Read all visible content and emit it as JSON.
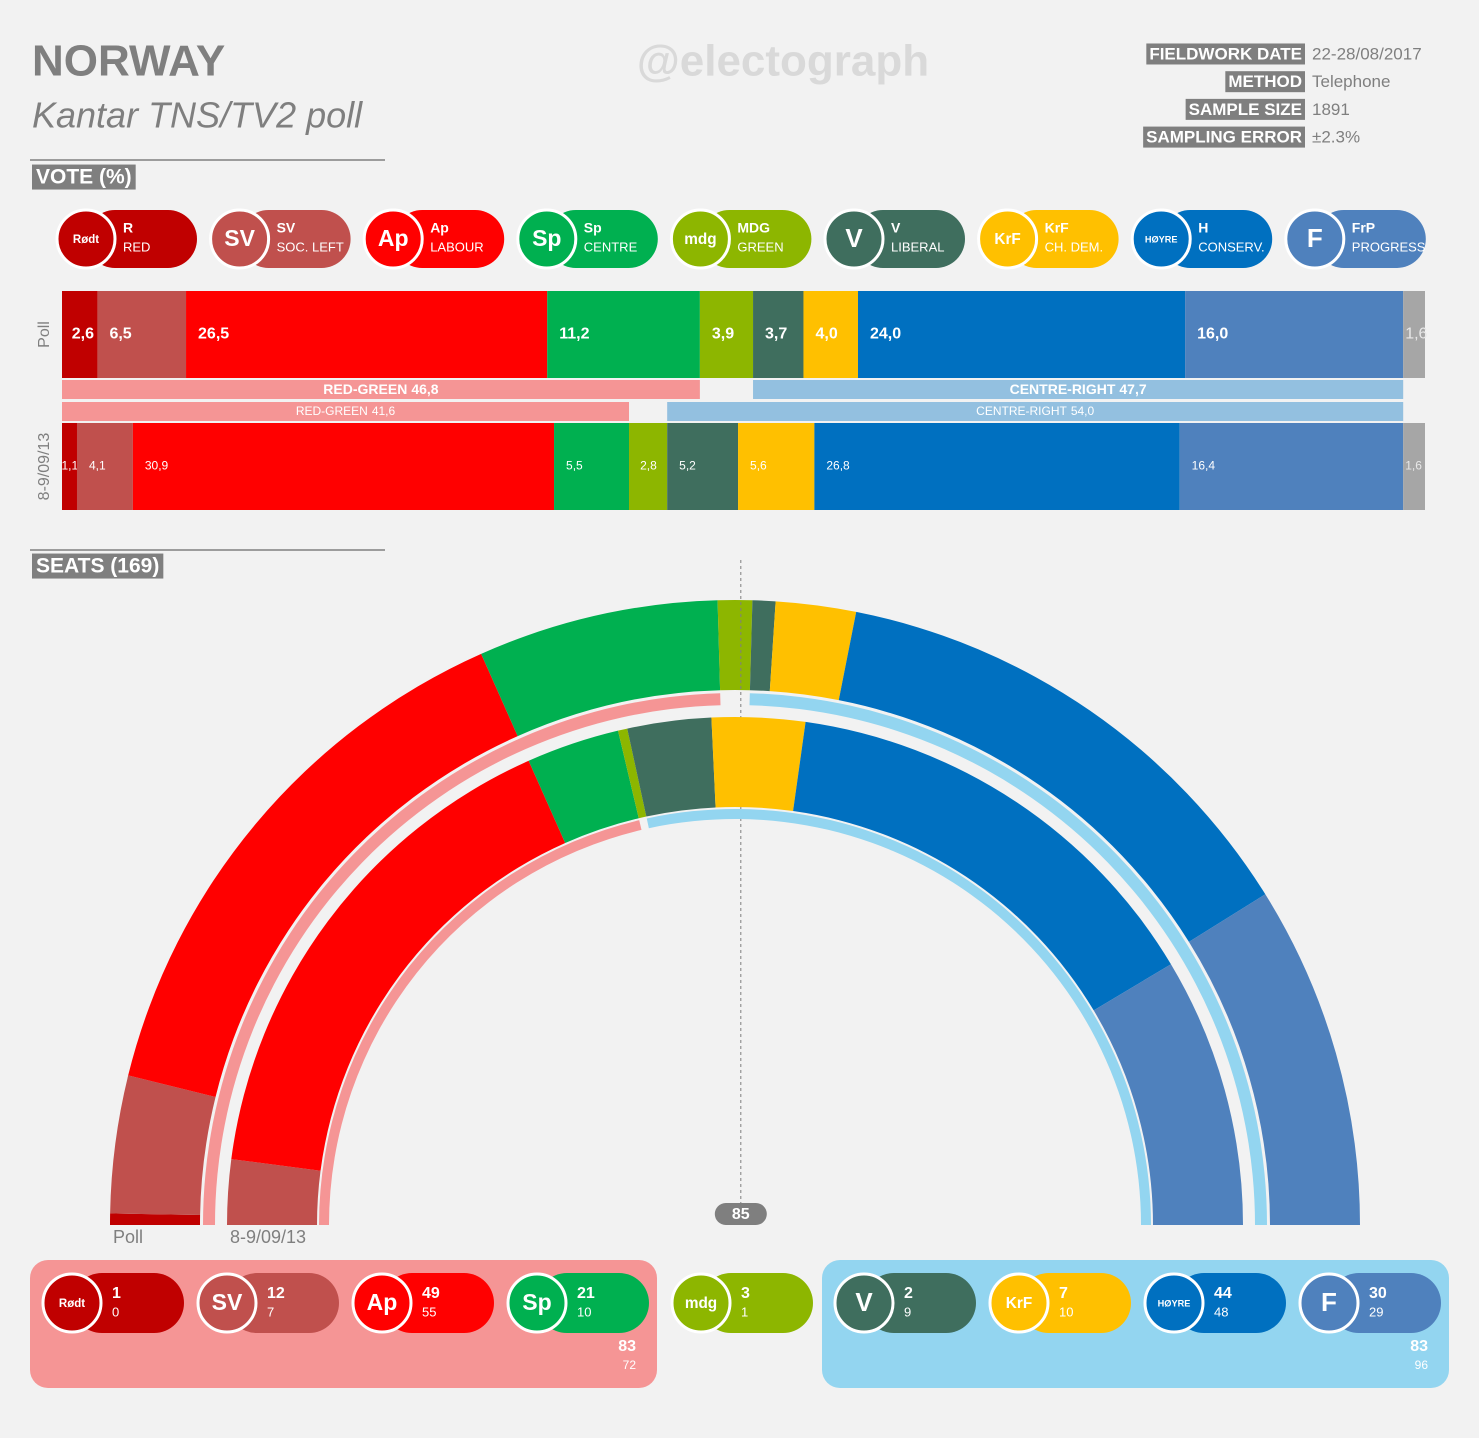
{
  "header": {
    "title": "NORWAY",
    "subtitle": "Kantar TNS/TV2 poll",
    "watermark": "@electograph",
    "details": [
      {
        "label": "FIELDWORK DATE",
        "value": "22-28/08/2017"
      },
      {
        "label": "METHOD",
        "value": "Telephone"
      },
      {
        "label": "SAMPLE SIZE",
        "value": "1891"
      },
      {
        "label": "SAMPLING ERROR",
        "value": "±2.3%"
      }
    ]
  },
  "chart_data": [
    {
      "type": "bar",
      "title": "VOTE (%)",
      "orientation": "horizontal",
      "stacked": true,
      "categories": [
        "Poll",
        "8-9/09/13"
      ],
      "xlim": [
        0,
        100
      ],
      "series": [
        {
          "name": "R",
          "description": "RED",
          "logo": "Rødt",
          "color": "#c00000",
          "values": [
            2.6,
            1.1
          ],
          "value_labels": [
            "2,6",
            "1,1"
          ]
        },
        {
          "name": "SV",
          "description": "SOC. LEFT",
          "logo": "SV",
          "color": "#c0504d",
          "values": [
            6.5,
            4.1
          ],
          "value_labels": [
            "6,5",
            "4,1"
          ]
        },
        {
          "name": "Ap",
          "description": "LABOUR",
          "logo": "Ap",
          "color": "#ff0000",
          "values": [
            26.5,
            30.9
          ],
          "value_labels": [
            "26,5",
            "30,9"
          ]
        },
        {
          "name": "Sp",
          "description": "CENTRE",
          "logo": "Sp",
          "color": "#00b050",
          "values": [
            11.2,
            5.5
          ],
          "value_labels": [
            "11,2",
            "5,5"
          ]
        },
        {
          "name": "MDG",
          "description": "GREEN",
          "logo": "mdg",
          "color": "#8db600",
          "values": [
            3.9,
            2.8
          ],
          "value_labels": [
            "3,9",
            "2,8"
          ]
        },
        {
          "name": "V",
          "description": "LIBERAL",
          "logo": "V",
          "color": "#3f6e5e",
          "values": [
            3.7,
            5.2
          ],
          "value_labels": [
            "3,7",
            "5,2"
          ]
        },
        {
          "name": "KrF",
          "description": "CH. DEM.",
          "logo": "KrF",
          "color": "#ffc000",
          "values": [
            4.0,
            5.6
          ],
          "value_labels": [
            "4,0",
            "5,6"
          ]
        },
        {
          "name": "H",
          "description": "CONSERV.",
          "logo": "HØYRE",
          "color": "#0070c0",
          "values": [
            24.0,
            26.8
          ],
          "value_labels": [
            "24,0",
            "26,8"
          ]
        },
        {
          "name": "FrP",
          "description": "PROGRESS",
          "logo": "F",
          "color": "#4f81bd",
          "values": [
            16.0,
            16.4
          ],
          "value_labels": [
            "16,0",
            "16,4"
          ]
        },
        {
          "color": "#a6a6a6",
          "values": [
            1.6,
            1.6
          ],
          "value_labels": [
            "1,6",
            "1,6"
          ]
        }
      ],
      "blocs": [
        {
          "name": "RED-GREEN",
          "color": "#f59595",
          "values": [
            46.8,
            41.6
          ],
          "value_labels": [
            "46,8",
            "41,6"
          ]
        },
        {
          "name": "CENTRE-RIGHT",
          "color": "#93c0e0",
          "values": [
            47.7,
            54.0
          ],
          "value_labels": [
            "47,7",
            "54,0"
          ]
        }
      ]
    },
    {
      "type": "parliament",
      "title": "SEATS (169)",
      "categories": [
        "Poll",
        "8-9/09/13"
      ],
      "majority": 85,
      "series": [
        {
          "color": "#c00000",
          "values": [
            1,
            0
          ]
        },
        {
          "color": "#c0504d",
          "values": [
            12,
            7
          ]
        },
        {
          "color": "#ff0000",
          "values": [
            49,
            55
          ]
        },
        {
          "color": "#00b050",
          "values": [
            21,
            10
          ]
        },
        {
          "color": "#8db600",
          "values": [
            3,
            1
          ]
        },
        {
          "color": "#3f6e5e",
          "values": [
            2,
            9
          ]
        },
        {
          "color": "#ffc000",
          "values": [
            7,
            10
          ]
        },
        {
          "color": "#0070c0",
          "values": [
            44,
            48
          ]
        },
        {
          "color": "#4f81bd",
          "values": [
            30,
            29
          ]
        }
      ],
      "blocs": [
        {
          "color": "#f59595",
          "values": [
            83,
            72
          ]
        },
        {
          "color": "#93d5f0",
          "values": [
            83,
            96
          ]
        }
      ]
    }
  ]
}
